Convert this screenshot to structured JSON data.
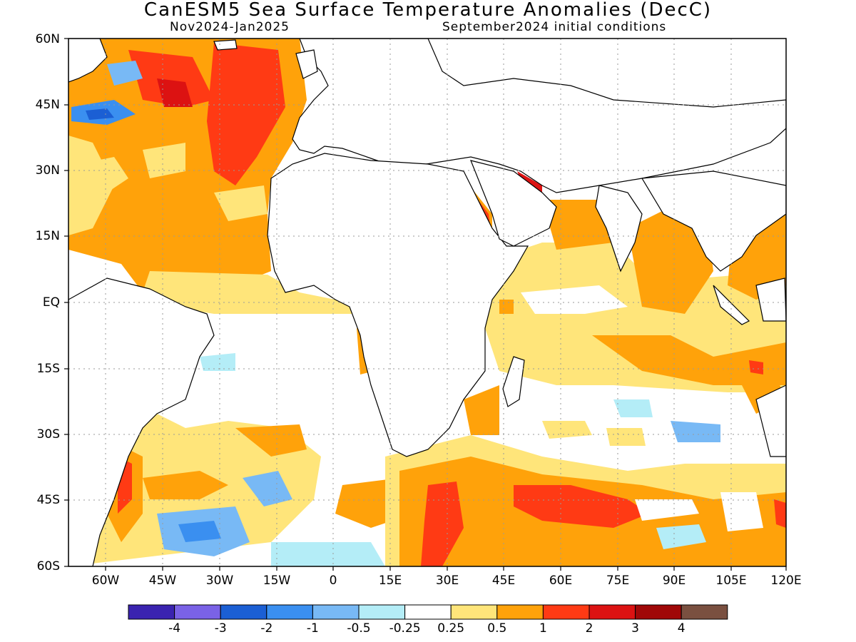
{
  "title": "CanESM5 Sea Surface Temperature Anomalies (DecC)",
  "subtitle_left": "Nov2024-Jan2025",
  "subtitle_right": "September2024 initial conditions",
  "map": {
    "lat_labels": [
      "60N",
      "45N",
      "30N",
      "15N",
      "EQ",
      "15S",
      "30S",
      "45S",
      "60S"
    ],
    "lon_labels": [
      "60W",
      "45W",
      "30W",
      "15W",
      "0",
      "15E",
      "30E",
      "45E",
      "60E",
      "75E",
      "90E",
      "105E",
      "120E"
    ]
  },
  "colorbar": {
    "colors": [
      "#3a23b0",
      "#7a62e6",
      "#1b5fd4",
      "#3a8ff0",
      "#78b9f5",
      "#b4edf7",
      "#ffffff",
      "#ffe57a",
      "#ffa20a",
      "#ff3a14",
      "#dc1212",
      "#a00808",
      "#7a5040"
    ],
    "labels": [
      "-4",
      "-3",
      "-2",
      "-1",
      "-0.5",
      "-0.25",
      "0.25",
      "0.5",
      "1",
      "2",
      "3",
      "4"
    ]
  },
  "map_colors": {
    "land": "#ffffff",
    "coast": "#000000",
    "grid": "#9a9a9a"
  }
}
